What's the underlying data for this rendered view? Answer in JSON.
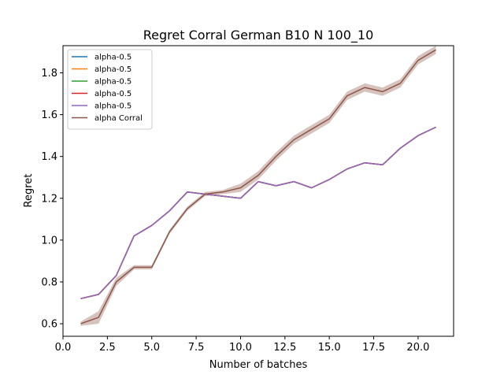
{
  "chart_data": {
    "type": "line",
    "title": "Regret Corral German B10 N 100_10",
    "xlabel": "Number of batches",
    "ylabel": "Regret",
    "xlim": [
      0.0,
      22.0
    ],
    "ylim": [
      0.54,
      1.93
    ],
    "xticks": [
      "0.0",
      "2.5",
      "5.0",
      "7.5",
      "10.0",
      "12.5",
      "15.0",
      "17.5",
      "20.0"
    ],
    "xtick_values": [
      0.0,
      2.5,
      5.0,
      7.5,
      10.0,
      12.5,
      15.0,
      17.5,
      20.0
    ],
    "yticks": [
      "0.6",
      "0.8",
      "1.0",
      "1.2",
      "1.4",
      "1.6",
      "1.8"
    ],
    "ytick_values": [
      0.6,
      0.8,
      1.0,
      1.2,
      1.4,
      1.6,
      1.8
    ],
    "grid": false,
    "legend_position": "upper-left",
    "x": [
      1,
      2,
      3,
      4,
      5,
      6,
      7,
      8,
      9,
      10,
      11,
      12,
      13,
      14,
      15,
      16,
      17,
      18,
      19,
      20,
      21
    ],
    "series": [
      {
        "name": "alpha-0.5",
        "color": "#1f77b4",
        "values": [
          0.72,
          0.74,
          0.83,
          1.02,
          1.07,
          1.14,
          1.23,
          1.22,
          1.21,
          1.2,
          1.28,
          1.26,
          1.28,
          1.25,
          1.29,
          1.34,
          1.37,
          1.36,
          1.44,
          1.5,
          1.54
        ]
      },
      {
        "name": "alpha-0.5",
        "color": "#ff7f0e",
        "values": [
          0.72,
          0.74,
          0.83,
          1.02,
          1.07,
          1.14,
          1.23,
          1.22,
          1.21,
          1.2,
          1.28,
          1.26,
          1.28,
          1.25,
          1.29,
          1.34,
          1.37,
          1.36,
          1.44,
          1.5,
          1.54
        ]
      },
      {
        "name": "alpha-0.5",
        "color": "#2ca02c",
        "values": [
          0.72,
          0.74,
          0.83,
          1.02,
          1.07,
          1.14,
          1.23,
          1.22,
          1.21,
          1.2,
          1.28,
          1.26,
          1.28,
          1.25,
          1.29,
          1.34,
          1.37,
          1.36,
          1.44,
          1.5,
          1.54
        ]
      },
      {
        "name": "alpha-0.5",
        "color": "#d62728",
        "values": [
          0.72,
          0.74,
          0.83,
          1.02,
          1.07,
          1.14,
          1.23,
          1.22,
          1.21,
          1.2,
          1.28,
          1.26,
          1.28,
          1.25,
          1.29,
          1.34,
          1.37,
          1.36,
          1.44,
          1.5,
          1.54
        ]
      },
      {
        "name": "alpha-0.5",
        "color": "#9467bd",
        "values": [
          0.72,
          0.74,
          0.83,
          1.02,
          1.07,
          1.14,
          1.23,
          1.22,
          1.21,
          1.2,
          1.28,
          1.26,
          1.28,
          1.25,
          1.29,
          1.34,
          1.37,
          1.36,
          1.44,
          1.5,
          1.54
        ]
      },
      {
        "name": "alpha Corral",
        "color": "#8c564b",
        "values": [
          0.6,
          0.63,
          0.8,
          0.87,
          0.87,
          1.04,
          1.15,
          1.22,
          1.23,
          1.25,
          1.31,
          1.4,
          1.48,
          1.53,
          1.58,
          1.69,
          1.73,
          1.71,
          1.75,
          1.86,
          1.91
        ],
        "band_lower": [
          0.59,
          0.6,
          0.78,
          0.86,
          0.86,
          1.03,
          1.14,
          1.21,
          1.22,
          1.23,
          1.29,
          1.38,
          1.46,
          1.51,
          1.56,
          1.67,
          1.71,
          1.69,
          1.73,
          1.84,
          1.89
        ],
        "band_upper": [
          0.61,
          0.66,
          0.82,
          0.88,
          0.88,
          1.05,
          1.16,
          1.23,
          1.24,
          1.27,
          1.33,
          1.42,
          1.5,
          1.55,
          1.6,
          1.71,
          1.75,
          1.73,
          1.77,
          1.88,
          1.93
        ],
        "band_color": "#d7c3bd"
      }
    ]
  }
}
